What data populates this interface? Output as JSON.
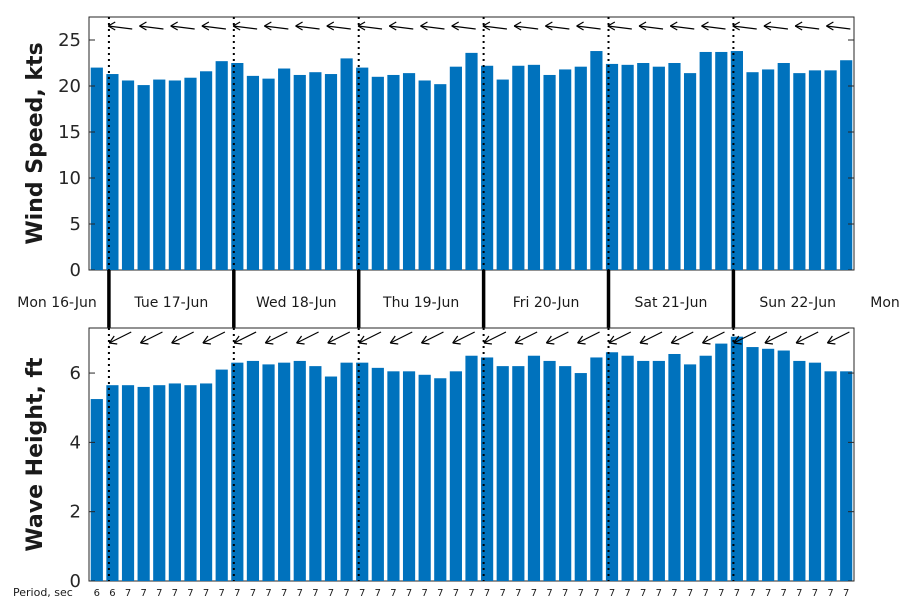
{
  "chart_data": [
    {
      "type": "bar",
      "ylabel": "Wind Speed, kts",
      "ylim": [
        0,
        27.5
      ],
      "yticks": [
        0,
        5,
        10,
        15,
        20,
        25
      ],
      "color": "#0072bd",
      "day_labels": [
        "Mon 16-Jun",
        "Tue 17-Jun",
        "Wed 18-Jun",
        "Thu 19-Jun",
        "Fri 20-Jun",
        "Sat 21-Jun",
        "Sun 22-Jun",
        "Mon"
      ],
      "values": [
        22.0,
        21.3,
        20.6,
        20.1,
        20.7,
        20.6,
        20.9,
        21.6,
        22.7,
        22.5,
        21.1,
        20.8,
        21.9,
        21.2,
        21.5,
        21.3,
        23.0,
        22.0,
        21.0,
        21.2,
        21.4,
        20.6,
        20.2,
        22.1,
        23.6,
        22.2,
        20.7,
        22.2,
        22.3,
        21.2,
        21.8,
        22.1,
        23.8,
        22.4,
        22.3,
        22.5,
        22.1,
        22.5,
        21.4,
        23.7,
        23.7,
        23.8,
        21.5,
        21.8,
        22.5,
        21.4,
        21.7,
        21.7,
        22.8
      ],
      "direction_arrows": "arrows along the top point toward the west (left), tilted slightly"
    },
    {
      "type": "bar",
      "ylabel": "Wave Height, ft",
      "ylim": [
        0,
        7.3
      ],
      "yticks": [
        0,
        2,
        4,
        6
      ],
      "color": "#0072bd",
      "values": [
        5.25,
        5.65,
        5.65,
        5.6,
        5.65,
        5.7,
        5.65,
        5.7,
        6.1,
        6.3,
        6.35,
        6.25,
        6.3,
        6.35,
        6.2,
        5.9,
        6.3,
        6.3,
        6.15,
        6.05,
        6.05,
        5.95,
        5.85,
        6.05,
        6.5,
        6.45,
        6.2,
        6.2,
        6.5,
        6.35,
        6.2,
        6.0,
        6.45,
        6.6,
        6.5,
        6.35,
        6.35,
        6.55,
        6.25,
        6.5,
        6.85,
        7.05,
        6.75,
        6.7,
        6.65,
        6.35,
        6.3,
        6.05,
        6.05
      ],
      "period_title": "Period, sec",
      "periods": [
        "6",
        "6",
        "7",
        "7",
        "7",
        "7",
        "7",
        "7",
        "7",
        "7",
        "7",
        "7",
        "7",
        "7",
        "7",
        "7",
        "7",
        "7",
        "7",
        "7",
        "7",
        "7",
        "7",
        "7",
        "7",
        "7",
        "7",
        "7",
        "7",
        "7",
        "7",
        "7",
        "7",
        "7",
        "7",
        "7",
        "7",
        "7",
        "7",
        "7",
        "7",
        "7",
        "7",
        "7",
        "7",
        "7",
        "7",
        "7",
        "7"
      ],
      "direction_arrows": "arrows along the top point toward the south-west"
    }
  ]
}
